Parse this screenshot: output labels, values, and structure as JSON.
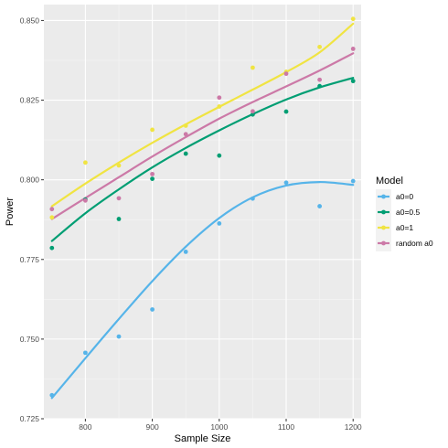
{
  "chart_data": {
    "type": "scatter",
    "xlabel": "Sample Size",
    "ylabel": "Power",
    "xlim": [
      738,
      1212
    ],
    "ylim": [
      0.725,
      0.855
    ],
    "x_ticks": [
      800,
      900,
      1000,
      1100,
      1200
    ],
    "x_tick_labels": [
      "800",
      "900",
      "1000",
      "1100",
      "1200"
    ],
    "y_ticks": [
      0.725,
      0.75,
      0.775,
      0.8,
      0.825,
      0.85
    ],
    "y_tick_labels": [
      "0.725",
      "0.750",
      "0.775",
      "0.800",
      "0.825",
      "0.850"
    ],
    "grid": true,
    "legend": {
      "title": "Model",
      "placement": "right"
    },
    "x": [
      750,
      800,
      850,
      900,
      950,
      1000,
      1050,
      1100,
      1150,
      1200
    ],
    "series": [
      {
        "name": "a0=0",
        "color": "#56B4E9",
        "values": [
          0.7324,
          0.7457,
          0.7508,
          0.7593,
          0.7774,
          0.7863,
          0.7941,
          0.7991,
          0.7917,
          0.7996
        ],
        "fit": [
          0.7315,
          0.744,
          0.7563,
          0.7682,
          0.779,
          0.788,
          0.7945,
          0.7982,
          0.7993,
          0.7984
        ]
      },
      {
        "name": "a0=0.5",
        "color": "#009E73",
        "values": [
          0.7786,
          0.7938,
          0.7877,
          0.8003,
          0.8082,
          0.8076,
          0.8205,
          0.8214,
          0.8294,
          0.831
        ],
        "fit": [
          0.7808,
          0.7895,
          0.797,
          0.8039,
          0.81,
          0.8155,
          0.8206,
          0.8252,
          0.829,
          0.832
        ]
      },
      {
        "name": "a0=1",
        "color": "#F0E442",
        "values": [
          0.7882,
          0.8054,
          0.8045,
          0.8157,
          0.817,
          0.823,
          0.8352,
          0.8339,
          0.8417,
          0.8505
        ],
        "fit": [
          0.7917,
          0.7988,
          0.8054,
          0.8116,
          0.8174,
          0.8229,
          0.8283,
          0.8338,
          0.84,
          0.849
        ]
      },
      {
        "name": "random a0",
        "color": "#CC79A7",
        "values": [
          0.7908,
          0.7935,
          0.7942,
          0.8018,
          0.8143,
          0.8258,
          0.8215,
          0.8333,
          0.8314,
          0.8411
        ],
        "fit": [
          0.7877,
          0.7943,
          0.8008,
          0.8073,
          0.8134,
          0.8192,
          0.8244,
          0.8293,
          0.8343,
          0.8397
        ]
      }
    ]
  }
}
